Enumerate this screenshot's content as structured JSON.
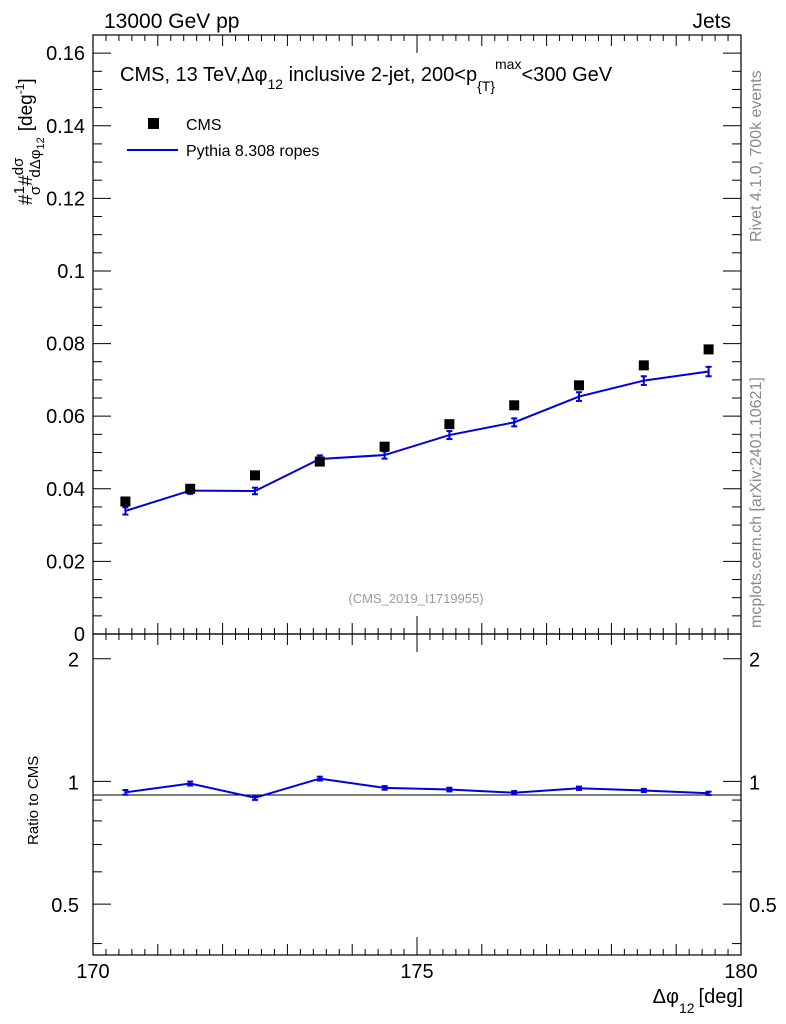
{
  "header": {
    "left": "13000 GeV pp",
    "right": "Jets"
  },
  "side_labels": {
    "rivet": "Rivet 4.1.0,  700k events",
    "mcplots": "mcplots.cern.ch [arXiv:2401.10621]"
  },
  "chart_data": {
    "type": "scatter",
    "title": {
      "prefix": "CMS, 13 TeV,",
      "dphi": "Δφ",
      "sub12": "12",
      "middle": " inclusive 2-jet, 200<p",
      "subT": "{T}",
      "supMax": "max",
      "suffix": "<300 GeV"
    },
    "watermark": "(CMS_2019_I1719955)",
    "ylabel": {
      "hash1": "#",
      "one": "1",
      "sigma": "σ",
      "hash2": "#",
      "dsigma": "dσ",
      "denom": "dΔφ",
      "denomSub": "12",
      "unit_open": "[deg",
      "unit_sup": "-1",
      "unit_close": "]"
    },
    "xlabel": {
      "dphi": "Δφ",
      "sub": "12",
      "unit": "[deg]"
    },
    "ratio_ylabel": "Ratio to CMS",
    "xlim": [
      170,
      180
    ],
    "ylim": [
      0,
      0.165
    ],
    "ratio_ylim": [
      0.375,
      2.3
    ],
    "x_ticks": [
      "170",
      "175",
      "180"
    ],
    "y_ticks": [
      "0",
      "0.02",
      "0.04",
      "0.06",
      "0.08",
      "0.1",
      "0.12",
      "0.14",
      "0.16"
    ],
    "ratio_ticks": [
      "0.5",
      "1",
      "2"
    ],
    "x": [
      170.5,
      171.5,
      172.5,
      173.5,
      174.5,
      175.5,
      176.5,
      177.5,
      178.5,
      179.5
    ],
    "series": [
      {
        "name": "CMS",
        "style": "markers",
        "color": "#000000",
        "values": [
          0.0365,
          0.04,
          0.0437,
          0.0475,
          0.0516,
          0.0578,
          0.063,
          0.0685,
          0.074,
          0.0784
        ]
      },
      {
        "name": "Pythia 8.308 ropes",
        "style": "line",
        "color": "#0000dd",
        "values": [
          0.0339,
          0.0395,
          0.0394,
          0.0482,
          0.0493,
          0.0548,
          0.0583,
          0.0654,
          0.0698,
          0.0723
        ],
        "errors": [
          0.001,
          0.0009,
          0.0009,
          0.001,
          0.001,
          0.0011,
          0.0011,
          0.0012,
          0.0012,
          0.0013
        ],
        "ratio": [
          0.94,
          0.988,
          0.912,
          1.016,
          0.964,
          0.955,
          0.938,
          0.962,
          0.95,
          0.935
        ],
        "ratio_errors": [
          0.025,
          0.022,
          0.022,
          0.022,
          0.02,
          0.02,
          0.018,
          0.018,
          0.017,
          0.017
        ]
      }
    ],
    "legend_position": "top-left"
  }
}
